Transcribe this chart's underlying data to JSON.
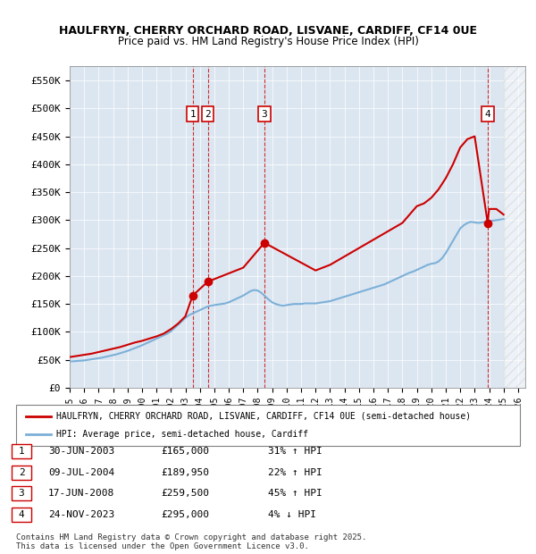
{
  "title1": "HAULFRYN, CHERRY ORCHARD ROAD, LISVANE, CARDIFF, CF14 0UE",
  "title2": "Price paid vs. HM Land Registry's House Price Index (HPI)",
  "ylabel_ticks": [
    "£0",
    "£50K",
    "£100K",
    "£150K",
    "£200K",
    "£250K",
    "£300K",
    "£350K",
    "£400K",
    "£450K",
    "£500K",
    "£550K"
  ],
  "ylabel_values": [
    0,
    50000,
    100000,
    150000,
    200000,
    250000,
    300000,
    350000,
    400000,
    450000,
    500000,
    550000
  ],
  "xlim_start": 1995.0,
  "xlim_end": 2026.5,
  "ylim_min": 0,
  "ylim_max": 575000,
  "background_color": "#dce6f1",
  "plot_bg_color": "#dce6f1",
  "hpi_line_color": "#7cb0d8",
  "price_line_color": "#cc0000",
  "transactions": [
    {
      "num": 1,
      "date": "30-JUN-2003",
      "year": 2003.5,
      "price": 165000,
      "hpi_pct": "31% ↑ HPI"
    },
    {
      "num": 2,
      "date": "09-JUL-2004",
      "year": 2004.55,
      "price": 189950,
      "hpi_pct": "22% ↑ HPI"
    },
    {
      "num": 3,
      "date": "17-JUN-2008",
      "year": 2008.46,
      "price": 259500,
      "hpi_pct": "45% ↑ HPI"
    },
    {
      "num": 4,
      "date": "24-NOV-2023",
      "year": 2023.9,
      "price": 295000,
      "hpi_pct": "4% ↓ HPI"
    }
  ],
  "legend_label1": "HAULFRYN, CHERRY ORCHARD ROAD, LISVANE, CARDIFF, CF14 0UE (semi-detached house)",
  "legend_label2": "HPI: Average price, semi-detached house, Cardiff",
  "footer1": "Contains HM Land Registry data © Crown copyright and database right 2025.",
  "footer2": "This data is licensed under the Open Government Licence v3.0.",
  "hpi_data_years": [
    1995.0,
    1995.25,
    1995.5,
    1995.75,
    1996.0,
    1996.25,
    1996.5,
    1996.75,
    1997.0,
    1997.25,
    1997.5,
    1997.75,
    1998.0,
    1998.25,
    1998.5,
    1998.75,
    1999.0,
    1999.25,
    1999.5,
    1999.75,
    2000.0,
    2000.25,
    2000.5,
    2000.75,
    2001.0,
    2001.25,
    2001.5,
    2001.75,
    2002.0,
    2002.25,
    2002.5,
    2002.75,
    2003.0,
    2003.25,
    2003.5,
    2003.75,
    2004.0,
    2004.25,
    2004.5,
    2004.75,
    2005.0,
    2005.25,
    2005.5,
    2005.75,
    2006.0,
    2006.25,
    2006.5,
    2006.75,
    2007.0,
    2007.25,
    2007.5,
    2007.75,
    2008.0,
    2008.25,
    2008.5,
    2008.75,
    2009.0,
    2009.25,
    2009.5,
    2009.75,
    2010.0,
    2010.25,
    2010.5,
    2010.75,
    2011.0,
    2011.25,
    2011.5,
    2011.75,
    2012.0,
    2012.25,
    2012.5,
    2012.75,
    2013.0,
    2013.25,
    2013.5,
    2013.75,
    2014.0,
    2014.25,
    2014.5,
    2014.75,
    2015.0,
    2015.25,
    2015.5,
    2015.75,
    2016.0,
    2016.25,
    2016.5,
    2016.75,
    2017.0,
    2017.25,
    2017.5,
    2017.75,
    2018.0,
    2018.25,
    2018.5,
    2018.75,
    2019.0,
    2019.25,
    2019.5,
    2019.75,
    2020.0,
    2020.25,
    2020.5,
    2020.75,
    2021.0,
    2021.25,
    2021.5,
    2021.75,
    2022.0,
    2022.25,
    2022.5,
    2022.75,
    2023.0,
    2023.25,
    2023.5,
    2023.75,
    2024.0,
    2024.25,
    2024.5,
    2024.75,
    2025.0
  ],
  "hpi_data_values": [
    47000,
    47500,
    48000,
    48500,
    49000,
    50000,
    51000,
    52000,
    53000,
    54000,
    55500,
    57000,
    58500,
    60000,
    62000,
    64000,
    66000,
    68500,
    71000,
    73500,
    76000,
    79000,
    82000,
    85000,
    88000,
    91000,
    94000,
    97000,
    101000,
    107000,
    113000,
    119000,
    125000,
    130000,
    133000,
    136000,
    139000,
    142000,
    145000,
    147000,
    148000,
    149000,
    150000,
    151000,
    153000,
    156000,
    159000,
    162000,
    165000,
    169000,
    173000,
    175000,
    174000,
    170000,
    164000,
    158000,
    153000,
    150000,
    148000,
    147000,
    148000,
    149000,
    150000,
    150000,
    150000,
    151000,
    151000,
    151000,
    151000,
    152000,
    153000,
    154000,
    155000,
    157000,
    159000,
    161000,
    163000,
    165000,
    167000,
    169000,
    171000,
    173000,
    175000,
    177000,
    179000,
    181000,
    183000,
    185000,
    188000,
    191000,
    194000,
    197000,
    200000,
    203000,
    206000,
    208000,
    211000,
    214000,
    217000,
    220000,
    222000,
    223000,
    226000,
    232000,
    241000,
    252000,
    263000,
    274000,
    285000,
    291000,
    295000,
    297000,
    296000,
    295000,
    296000,
    297000,
    298000,
    299000,
    300000,
    301000,
    302000
  ],
  "price_data_years": [
    1995.0,
    1995.5,
    1996.0,
    1996.5,
    1997.0,
    1997.5,
    1998.0,
    1998.5,
    1999.0,
    1999.5,
    2000.0,
    2000.5,
    2001.0,
    2001.5,
    2002.0,
    2002.5,
    2003.0,
    2003.5,
    2004.55,
    2007.0,
    2008.46,
    2012.0,
    2013.0,
    2014.0,
    2015.0,
    2016.0,
    2017.0,
    2018.0,
    2018.5,
    2019.0,
    2019.5,
    2020.0,
    2020.5,
    2021.0,
    2021.5,
    2022.0,
    2022.5,
    2023.0,
    2023.9,
    2024.0,
    2024.5,
    2025.0
  ],
  "price_data_values": [
    55000,
    57000,
    59000,
    61000,
    64000,
    67000,
    70000,
    73000,
    77000,
    81000,
    84000,
    88000,
    92000,
    97000,
    105000,
    115000,
    128000,
    165000,
    189950,
    215000,
    259500,
    210000,
    220000,
    235000,
    250000,
    265000,
    280000,
    295000,
    310000,
    325000,
    330000,
    340000,
    355000,
    375000,
    400000,
    430000,
    445000,
    450000,
    295000,
    320000,
    320000,
    310000
  ]
}
